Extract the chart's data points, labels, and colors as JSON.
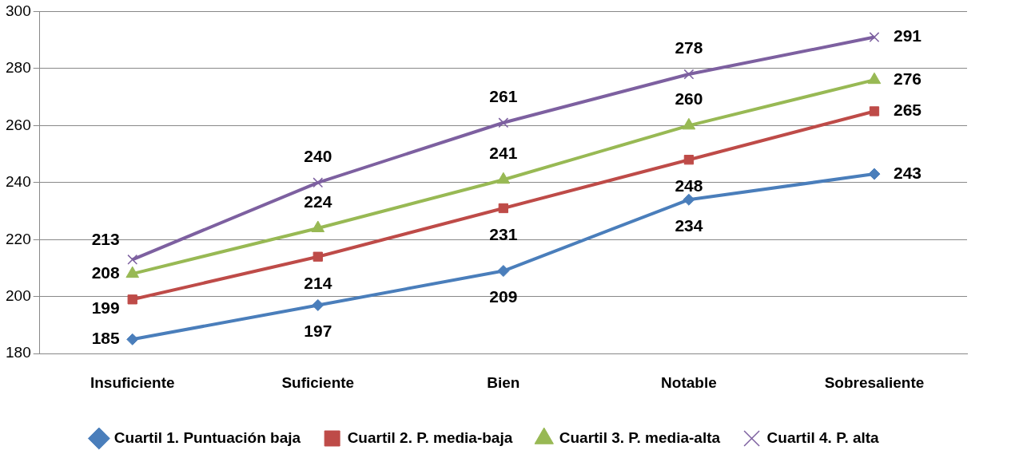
{
  "chart_data": {
    "type": "line",
    "categories": [
      "Insuficiente",
      "Suficiente",
      "Bien",
      "Notable",
      "Sobresaliente"
    ],
    "series": [
      {
        "name": "Cuartil 1. Puntuación baja",
        "color": "#4a7ebb",
        "marker": "diamond",
        "values": [
          185,
          197,
          209,
          234,
          243
        ]
      },
      {
        "name": "Cuartil 2. P. media-baja",
        "color": "#be4b48",
        "marker": "square",
        "values": [
          199,
          214,
          231,
          248,
          265
        ]
      },
      {
        "name": "Cuartil 3. P. media-alta",
        "color": "#98b954",
        "marker": "triangle",
        "values": [
          208,
          224,
          241,
          260,
          276
        ]
      },
      {
        "name": "Cuartil 4. P. alta",
        "color": "#7d60a0",
        "marker": "cross",
        "values": [
          213,
          240,
          261,
          278,
          291
        ]
      }
    ],
    "ylim": [
      180,
      300
    ],
    "yticks": [
      180,
      200,
      220,
      240,
      260,
      280,
      300
    ],
    "grid": "y",
    "legend": "bottom",
    "data_labels": true
  }
}
